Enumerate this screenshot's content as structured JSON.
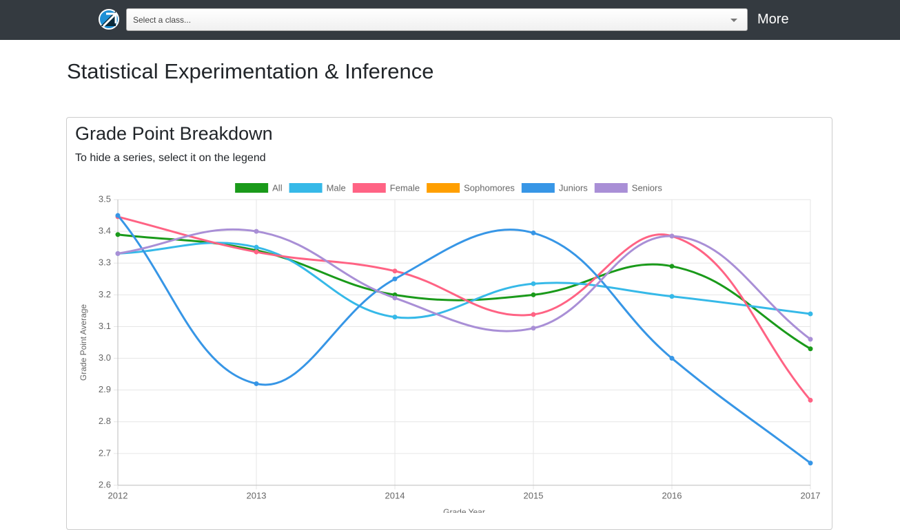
{
  "navbar": {
    "select_placeholder": "Select a class...",
    "menu": "More"
  },
  "page_title": "Statistical Experimentation & Inference",
  "card": {
    "title": "Grade Point Breakdown",
    "subtitle": "To hide a series, select it on the legend"
  },
  "chart_data": {
    "type": "line",
    "y_label": "Grade Point Average",
    "x_label": "Grade Year",
    "x": [
      2012,
      2013,
      2014,
      2015,
      2016,
      2017
    ],
    "xlim": [
      2012,
      2017
    ],
    "xticks": [
      2012,
      2013,
      2014,
      2015,
      2016,
      2017
    ],
    "ylim": [
      2.6,
      3.5
    ],
    "yticks": [
      2.6,
      2.7,
      2.8,
      2.9,
      {
        "value": 3,
        "label": "3.0"
      },
      3.1,
      3.2,
      3.3,
      3.4,
      3.5
    ],
    "grid": true,
    "legend": "top",
    "smooth": true,
    "series": [
      {
        "name": "All",
        "color": "#1a9a1a",
        "values": [
          3.39,
          3.34,
          3.2,
          3.2,
          3.29,
          3.03
        ]
      },
      {
        "name": "Male",
        "color": "#36b9e8",
        "values": [
          3.33,
          3.35,
          3.13,
          3.235,
          3.195,
          3.14
        ]
      },
      {
        "name": "Female",
        "color": "#ff6384",
        "values": [
          3.446,
          3.335,
          3.275,
          3.138,
          3.385,
          2.868
        ]
      },
      {
        "name": "Sophomores",
        "color": "#ff9f00",
        "values": [
          null,
          null,
          null,
          null,
          null,
          null
        ]
      },
      {
        "name": "Juniors",
        "color": "#3796e6",
        "values": [
          3.45,
          2.92,
          3.25,
          3.395,
          3.0,
          2.67
        ]
      },
      {
        "name": "Seniors",
        "color": "#a98fd6",
        "values": [
          3.33,
          3.4,
          3.19,
          3.095,
          3.385,
          3.06
        ]
      }
    ]
  }
}
